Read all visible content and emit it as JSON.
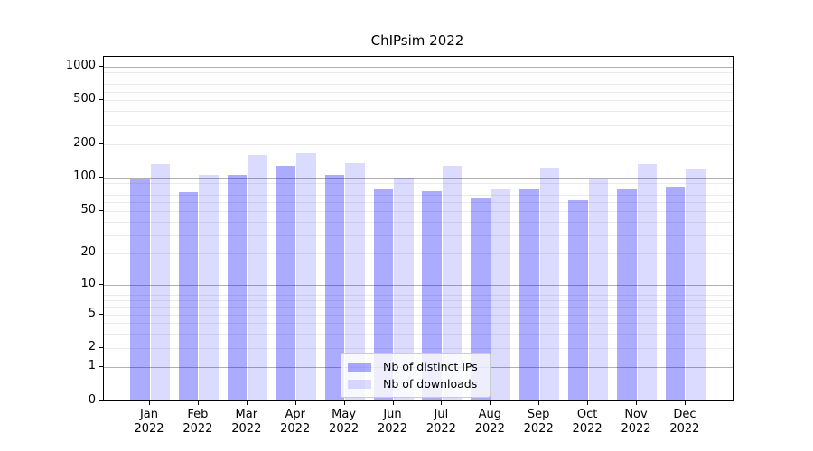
{
  "chart_data": {
    "type": "bar",
    "title": "ChIPsim 2022",
    "categories": [
      "Jan 2022",
      "Feb 2022",
      "Mar 2022",
      "Apr 2022",
      "May 2022",
      "Jun 2022",
      "Jul 2022",
      "Aug 2022",
      "Sep 2022",
      "Oct 2022",
      "Nov 2022",
      "Dec 2022"
    ],
    "series": [
      {
        "name": "Nb of distinct IPs",
        "color": "rgba(0,0,255,0.33)",
        "values": [
          96,
          74,
          105,
          127,
          106,
          80,
          75,
          66,
          78,
          62,
          78,
          83
        ]
      },
      {
        "name": "Nb of downloads",
        "color": "rgba(0,0,255,0.14)",
        "values": [
          133,
          106,
          160,
          166,
          135,
          100,
          127,
          80,
          123,
          97,
          132,
          119
        ]
      }
    ],
    "xlabel": "",
    "ylabel": "",
    "yscale": "log1p",
    "yticks": [
      0,
      1,
      2,
      5,
      10,
      20,
      50,
      100,
      200,
      500,
      1000
    ],
    "ylim": [
      0,
      1236
    ],
    "grid": "both",
    "major_grid_values": [
      1,
      10,
      100,
      1000
    ],
    "legend_position": "lower center",
    "colors": {
      "major_grid": "#b0b0b0",
      "minor_grid": "#ebebeb",
      "spine": "#000000",
      "text": "#000000",
      "legend_border": "#cccccc"
    }
  }
}
